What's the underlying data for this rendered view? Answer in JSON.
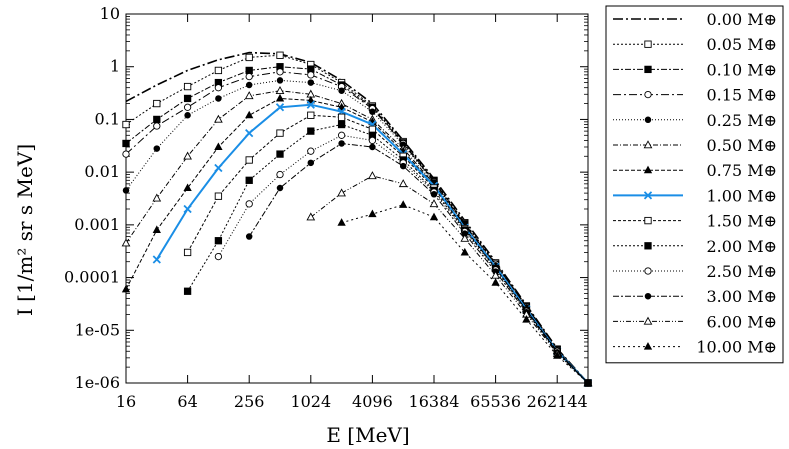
{
  "chart_data": {
    "type": "line",
    "title": "",
    "xlabel": "E [MeV]",
    "ylabel": "I [1/m² sr s MeV]",
    "x_scale": "log2",
    "y_scale": "log10",
    "xlim": [
      16,
      524288
    ],
    "ylim": [
      1e-06,
      10
    ],
    "x_tick_labels": [
      "16",
      "64",
      "256",
      "1024",
      "4096",
      "16384",
      "65536",
      "262144"
    ],
    "x_tick_values": [
      16,
      64,
      256,
      1024,
      4096,
      16384,
      65536,
      262144
    ],
    "y_tick_labels": [
      "1e-06",
      "1e-05",
      "0.0001",
      "0.001",
      "0.01",
      "0.1",
      "1",
      "10"
    ],
    "y_tick_values": [
      1e-06,
      1e-05,
      0.0001,
      0.001,
      0.01,
      0.1,
      1,
      10
    ],
    "grid": false,
    "legend_position": "right, outside",
    "x": [
      16,
      32,
      64,
      128,
      256,
      512,
      1024,
      2048,
      4096,
      8192,
      16384,
      32768,
      65536,
      131072,
      262144,
      524288
    ],
    "series": [
      {
        "name": "0.00 M⊕",
        "label_num": "0.00",
        "marker": "none",
        "dash": "10,3,2,3",
        "color": "#000000",
        "width": 1.6,
        "values": [
          0.22,
          0.45,
          0.85,
          1.35,
          1.85,
          1.75,
          1.2,
          0.55,
          0.2,
          0.04,
          0.0075,
          0.0012,
          0.0002,
          3e-05,
          4.5e-06,
          1e-06
        ]
      },
      {
        "name": "0.05 M⊕",
        "label_num": "0.05",
        "marker": "square-open",
        "dash": "2,2",
        "color": "#000000",
        "width": 1,
        "values": [
          0.08,
          0.2,
          0.42,
          0.85,
          1.5,
          1.65,
          1.1,
          0.5,
          0.18,
          0.038,
          0.007,
          0.0011,
          0.00019,
          2.9e-05,
          4.4e-06,
          1e-06
        ]
      },
      {
        "name": "0.10 M⊕",
        "label_num": "0.10",
        "marker": "square-filled",
        "dash": "6,2,2,2",
        "color": "#000000",
        "width": 1,
        "values": [
          0.035,
          0.1,
          0.25,
          0.5,
          0.85,
          1.0,
          0.9,
          0.45,
          0.17,
          0.036,
          0.0068,
          0.00105,
          0.00018,
          2.8e-05,
          4.3e-06,
          1e-06
        ]
      },
      {
        "name": "0.15 M⊕",
        "label_num": "0.15",
        "marker": "circle-open",
        "dash": "8,3,2,3",
        "color": "#000000",
        "width": 1,
        "values": [
          0.022,
          0.075,
          0.17,
          0.4,
          0.65,
          0.8,
          0.7,
          0.42,
          0.16,
          0.035,
          0.0066,
          0.001,
          0.00018,
          2.8e-05,
          4.3e-06,
          1e-06
        ]
      },
      {
        "name": "0.25 M⊕",
        "label_num": "0.25",
        "marker": "circle-filled",
        "dash": "1,2",
        "color": "#000000",
        "width": 1,
        "values": [
          0.0045,
          0.028,
          0.12,
          0.25,
          0.45,
          0.55,
          0.5,
          0.35,
          0.14,
          0.033,
          0.0064,
          0.001,
          0.00017,
          2.7e-05,
          4.2e-06,
          1e-06
        ]
      },
      {
        "name": "0.50 M⊕",
        "label_num": "0.50",
        "marker": "triangle-open",
        "dash": "5,2,1,2",
        "color": "#000000",
        "width": 1,
        "values": [
          0.00045,
          0.0032,
          0.02,
          0.1,
          0.28,
          0.35,
          0.3,
          0.2,
          0.1,
          0.028,
          0.006,
          0.00095,
          0.00016,
          2.6e-05,
          4.1e-06,
          1e-06
        ]
      },
      {
        "name": "0.75 M⊕",
        "label_num": "0.75",
        "marker": "triangle-filled",
        "dash": "4,2",
        "color": "#000000",
        "width": 1,
        "values": [
          6e-05,
          0.0008,
          0.005,
          0.03,
          0.12,
          0.25,
          0.23,
          0.17,
          0.09,
          0.025,
          0.0057,
          0.0009,
          0.00016,
          2.5e-05,
          4e-06,
          1e-06
        ]
      },
      {
        "name": "1.00 M⊕",
        "label_num": "1.00",
        "marker": "x",
        "dash": "",
        "color": "#1a8ee6",
        "width": 2,
        "values": [
          null,
          0.00022,
          0.002,
          0.012,
          0.055,
          0.17,
          0.19,
          0.14,
          0.08,
          0.022,
          0.0055,
          0.00088,
          0.00016,
          2.5e-05,
          4e-06,
          1e-06
        ]
      },
      {
        "name": "1.50 M⊕",
        "label_num": "1.50",
        "marker": "square-open",
        "dash": "3,2",
        "color": "#000000",
        "width": 1,
        "values": [
          null,
          null,
          0.0003,
          0.0035,
          0.017,
          0.055,
          0.12,
          0.11,
          0.065,
          0.02,
          0.005,
          0.00085,
          0.00015,
          2.4e-05,
          4e-06,
          1e-06
        ]
      },
      {
        "name": "2.00 M⊕",
        "label_num": "2.00",
        "marker": "square-filled",
        "dash": "2,2",
        "color": "#000000",
        "width": 1,
        "values": [
          null,
          null,
          5.5e-05,
          0.0005,
          0.007,
          0.022,
          0.06,
          0.08,
          0.05,
          0.017,
          0.0045,
          0.0008,
          0.00015,
          2.4e-05,
          4e-06,
          1e-06
        ]
      },
      {
        "name": "2.50 M⊕",
        "label_num": "2.50",
        "marker": "circle-open",
        "dash": "1,2",
        "color": "#000000",
        "width": 1,
        "values": [
          null,
          null,
          null,
          0.00025,
          0.0025,
          0.009,
          0.025,
          0.05,
          0.04,
          0.015,
          0.0042,
          0.00075,
          0.00014,
          2.3e-05,
          4e-06,
          1e-06
        ]
      },
      {
        "name": "3.00 M⊕",
        "label_num": "3.00",
        "marker": "circle-filled",
        "dash": "6,2,2,2",
        "color": "#000000",
        "width": 1,
        "values": [
          null,
          null,
          null,
          null,
          0.0006,
          0.005,
          0.015,
          0.035,
          0.03,
          0.013,
          0.0038,
          0.00068,
          0.00013,
          2.2e-05,
          3.8e-06,
          1e-06
        ]
      },
      {
        "name": "6.00 M⊕",
        "label_num": "6.00",
        "marker": "triangle-open",
        "dash": "5,2,1,2,1,2",
        "color": "#000000",
        "width": 1,
        "values": [
          null,
          null,
          null,
          null,
          null,
          null,
          0.0014,
          0.004,
          0.0085,
          0.006,
          0.0025,
          0.00055,
          0.00011,
          2e-05,
          3.6e-06,
          1e-06
        ]
      },
      {
        "name": "10.00 M⊕",
        "label_num": "10.00",
        "marker": "triangle-filled",
        "dash": "2,3",
        "color": "#000000",
        "width": 1,
        "values": [
          null,
          null,
          null,
          null,
          null,
          null,
          null,
          0.0011,
          0.0016,
          0.0024,
          0.0014,
          0.0003,
          8e-05,
          1.6e-05,
          3.3e-06,
          1e-06
        ]
      }
    ]
  }
}
